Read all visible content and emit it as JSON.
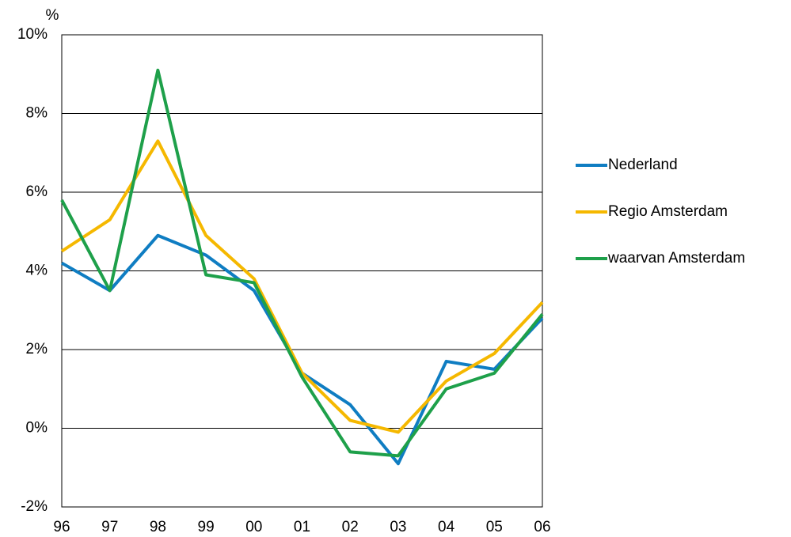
{
  "chart_data": {
    "type": "line",
    "y_label": "%",
    "categories": [
      "96",
      "97",
      "98",
      "99",
      "00",
      "01",
      "02",
      "03",
      "04",
      "05",
      "06"
    ],
    "series": [
      {
        "name": "Nederland",
        "color": "#0f7dc2",
        "values": [
          4.2,
          3.5,
          4.9,
          4.4,
          3.5,
          1.4,
          0.6,
          -0.9,
          1.7,
          1.5,
          2.8
        ]
      },
      {
        "name": "Regio Amsterdam",
        "color": "#f5b800",
        "values": [
          4.5,
          5.3,
          7.3,
          4.9,
          3.8,
          1.4,
          0.2,
          -0.1,
          1.2,
          1.9,
          3.2
        ]
      },
      {
        "name": "waarvan Amsterdam",
        "color": "#1ea04a",
        "values": [
          5.8,
          3.5,
          9.1,
          3.9,
          3.7,
          1.3,
          -0.6,
          -0.7,
          1.0,
          1.4,
          2.9
        ]
      }
    ],
    "ylim": [
      -2,
      10
    ],
    "yticks": [
      {
        "value": -2,
        "label": "-2%"
      },
      {
        "value": 0,
        "label": "0%"
      },
      {
        "value": 2,
        "label": "2%"
      },
      {
        "value": 4,
        "label": "4%"
      },
      {
        "value": 6,
        "label": "6%"
      },
      {
        "value": 8,
        "label": "8%"
      },
      {
        "value": 10,
        "label": "10%"
      }
    ],
    "grid": true,
    "legend": "right"
  }
}
